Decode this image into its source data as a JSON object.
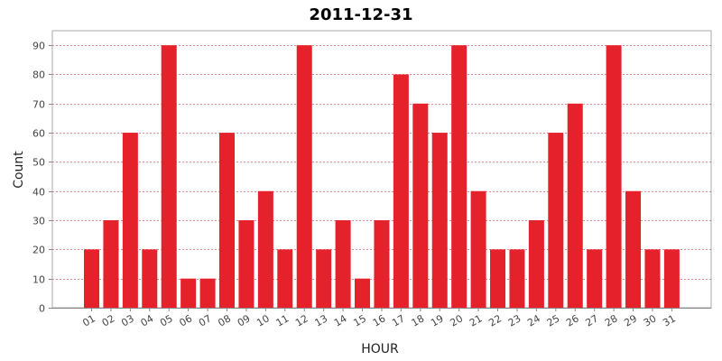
{
  "chart_data": {
    "type": "bar",
    "title": "2011-12-31",
    "xlabel": "HOUR",
    "ylabel": "Count",
    "ylim": [
      0,
      95
    ],
    "yticks": [
      0,
      10,
      20,
      30,
      40,
      50,
      60,
      70,
      80,
      90
    ],
    "grid": true,
    "legend": "none",
    "categories": [
      "01",
      "02",
      "03",
      "04",
      "05",
      "06",
      "07",
      "08",
      "09",
      "10",
      "11",
      "12",
      "13",
      "14",
      "15",
      "16",
      "17",
      "18",
      "19",
      "20",
      "21",
      "22",
      "23",
      "24",
      "25",
      "26",
      "27",
      "28",
      "29",
      "30",
      "31"
    ],
    "values": [
      20,
      30,
      60,
      20,
      90,
      10,
      10,
      60,
      30,
      40,
      20,
      90,
      20,
      30,
      10,
      30,
      80,
      70,
      60,
      90,
      40,
      20,
      20,
      30,
      60,
      70,
      20,
      90,
      40,
      20,
      20
    ],
    "colors": {
      "bar": "#e5212b",
      "grid": "#e2888c",
      "axis": "#888888",
      "tick_label": "#444444",
      "title": "#000000"
    }
  }
}
